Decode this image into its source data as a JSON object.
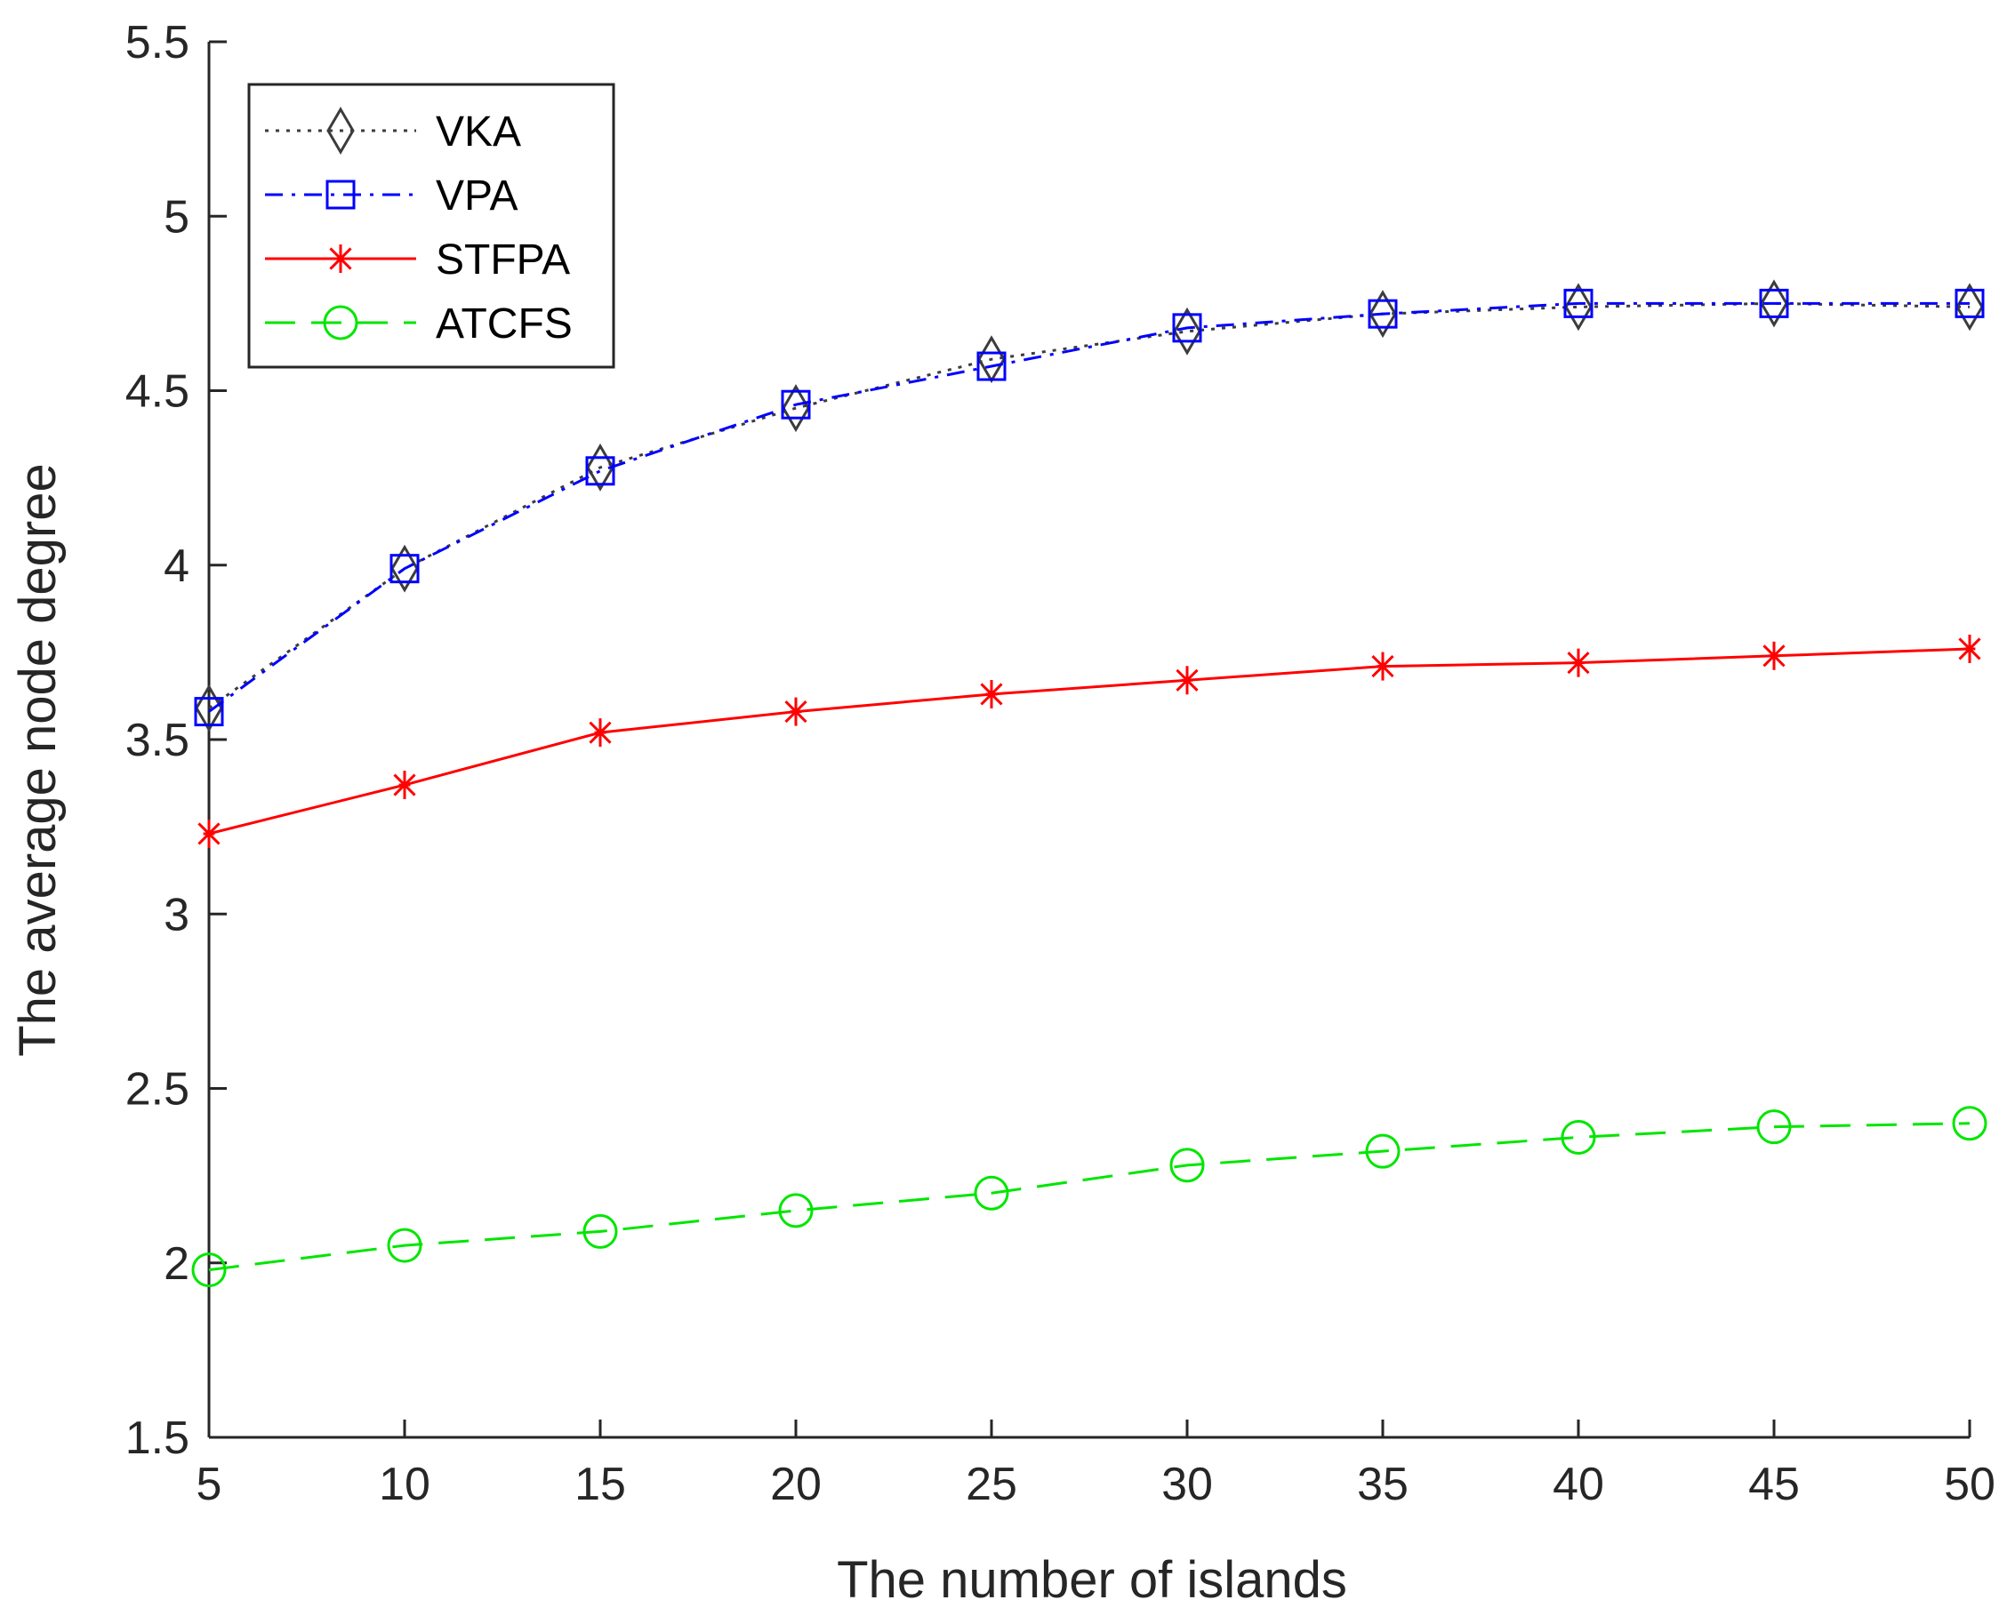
{
  "chart_data": {
    "type": "line",
    "title": "",
    "xlabel": "The number of islands",
    "ylabel": "The average node degree",
    "xlim": [
      5,
      50
    ],
    "ylim": [
      1.5,
      5.5
    ],
    "xticks": [
      5,
      10,
      15,
      20,
      25,
      30,
      35,
      40,
      45,
      50
    ],
    "xtick_labels": [
      "5",
      "10",
      "15",
      "20",
      "25",
      "30",
      "35",
      "40",
      "45",
      "50"
    ],
    "yticks": [
      1.5,
      2,
      2.5,
      3,
      3.5,
      4,
      4.5,
      5,
      5.5
    ],
    "ytick_labels": [
      "1.5",
      "2",
      "2.5",
      "3",
      "3.5",
      "4",
      "4.5",
      "5",
      "5.5"
    ],
    "grid": false,
    "legend_position": "top-left",
    "x": [
      5,
      10,
      15,
      20,
      25,
      30,
      35,
      40,
      45,
      50
    ],
    "series": [
      {
        "name": "VKA",
        "values": [
          3.59,
          3.99,
          4.28,
          4.45,
          4.59,
          4.67,
          4.72,
          4.74,
          4.75,
          4.74
        ],
        "color": "#3c3c3c",
        "line_style": "dotted",
        "marker": "diamond"
      },
      {
        "name": "VPA",
        "values": [
          3.58,
          3.99,
          4.27,
          4.46,
          4.57,
          4.68,
          4.72,
          4.75,
          4.75,
          4.75
        ],
        "color": "#0000ff",
        "line_style": "dash-dot",
        "marker": "square"
      },
      {
        "name": "STFPA",
        "values": [
          3.23,
          3.37,
          3.52,
          3.58,
          3.63,
          3.67,
          3.71,
          3.72,
          3.74,
          3.76
        ],
        "color": "#ff0000",
        "line_style": "solid",
        "marker": "asterisk"
      },
      {
        "name": "ATCFS",
        "values": [
          1.98,
          2.05,
          2.09,
          2.15,
          2.2,
          2.28,
          2.32,
          2.36,
          2.39,
          2.4
        ],
        "color": "#00e600",
        "line_style": "dashed",
        "marker": "circle"
      }
    ]
  }
}
